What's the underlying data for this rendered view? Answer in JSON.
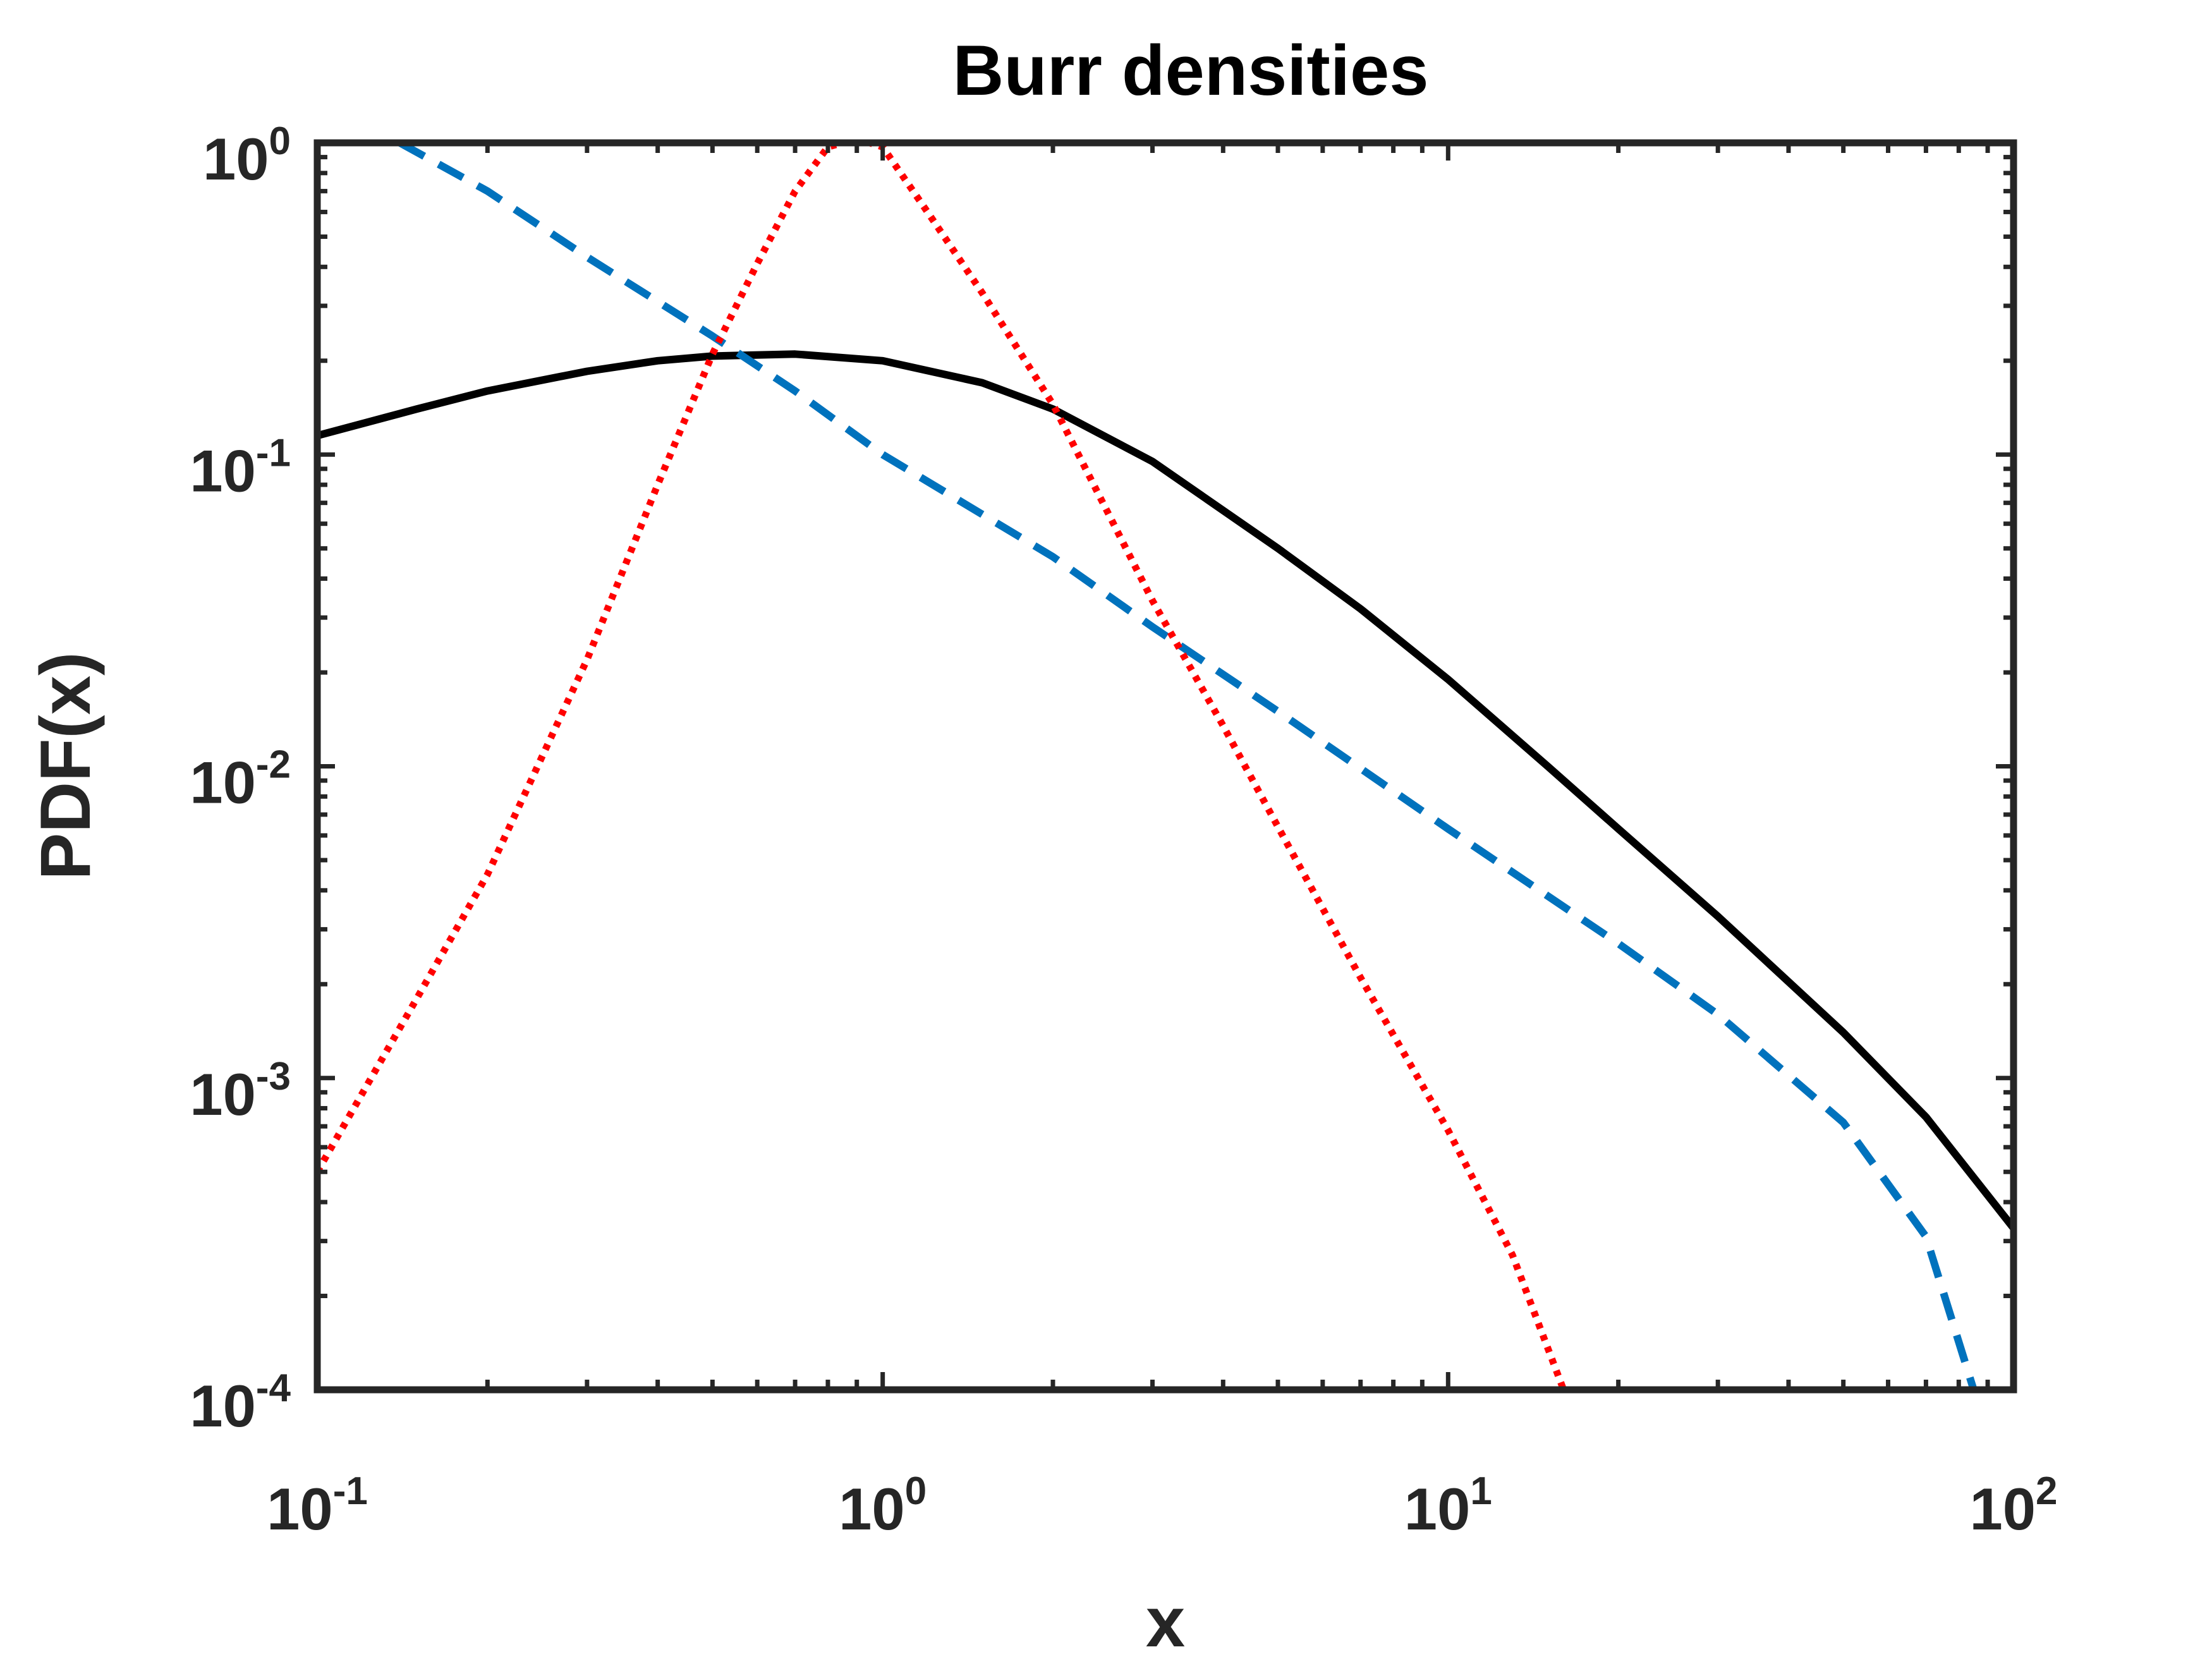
{
  "chart_data": {
    "type": "line",
    "title": "Burr densities",
    "xlabel": "x",
    "ylabel": "PDF(x)",
    "xscale": "log",
    "yscale": "log",
    "xlim": [
      0.1,
      100
    ],
    "ylim": [
      0.0001,
      1
    ],
    "grid": false,
    "legend": "none",
    "x_ticks": [
      {
        "value": 0.1,
        "base": "10",
        "exp": "-1"
      },
      {
        "value": 1,
        "base": "10",
        "exp": "0"
      },
      {
        "value": 10,
        "base": "10",
        "exp": "1"
      },
      {
        "value": 100,
        "base": "10",
        "exp": "2"
      }
    ],
    "y_ticks": [
      {
        "value": 1,
        "base": "10",
        "exp": "0"
      },
      {
        "value": 0.1,
        "base": "10",
        "exp": "-1"
      },
      {
        "value": 0.01,
        "base": "10",
        "exp": "-2"
      },
      {
        "value": 0.001,
        "base": "10",
        "exp": "-3"
      },
      {
        "value": 0.0001,
        "base": "10",
        "exp": "-4"
      }
    ],
    "series": [
      {
        "style": "solid",
        "color": "#000000",
        "x": [
          0.1,
          0.15,
          0.2,
          0.3,
          0.4,
          0.5,
          0.7,
          1,
          1.5,
          2,
          3,
          5,
          7,
          10,
          15,
          20,
          30,
          50,
          70,
          100
        ],
        "y": [
          0.115,
          0.14,
          0.16,
          0.185,
          0.2,
          0.207,
          0.21,
          0.2,
          0.17,
          0.14,
          0.095,
          0.05,
          0.032,
          0.019,
          0.01,
          0.0063,
          0.0033,
          0.0014,
          0.00075,
          0.00033
        ]
      },
      {
        "style": "dashed",
        "color": "#0072BD",
        "x": [
          0.14,
          0.2,
          0.3,
          0.5,
          0.7,
          1,
          2,
          3,
          5,
          10,
          20,
          30,
          50,
          70,
          85
        ],
        "y": [
          1.0,
          0.7,
          0.43,
          0.24,
          0.16,
          0.1,
          0.047,
          0.028,
          0.015,
          0.0063,
          0.0027,
          0.0016,
          0.00072,
          0.00031,
          0.0001
        ]
      },
      {
        "style": "dotted",
        "color": "#FF0000",
        "x": [
          0.1,
          0.15,
          0.2,
          0.3,
          0.4,
          0.5,
          0.6,
          0.7,
          0.8,
          0.9,
          1.0,
          1.2,
          1.5,
          2,
          3,
          4,
          5,
          7,
          10,
          13,
          16
        ],
        "y": [
          0.0005,
          0.0018,
          0.0045,
          0.022,
          0.08,
          0.21,
          0.41,
          0.7,
          0.97,
          1.03,
          0.97,
          0.6,
          0.33,
          0.145,
          0.034,
          0.0135,
          0.0064,
          0.0021,
          0.00068,
          0.00027,
          0.0001
        ]
      }
    ]
  }
}
